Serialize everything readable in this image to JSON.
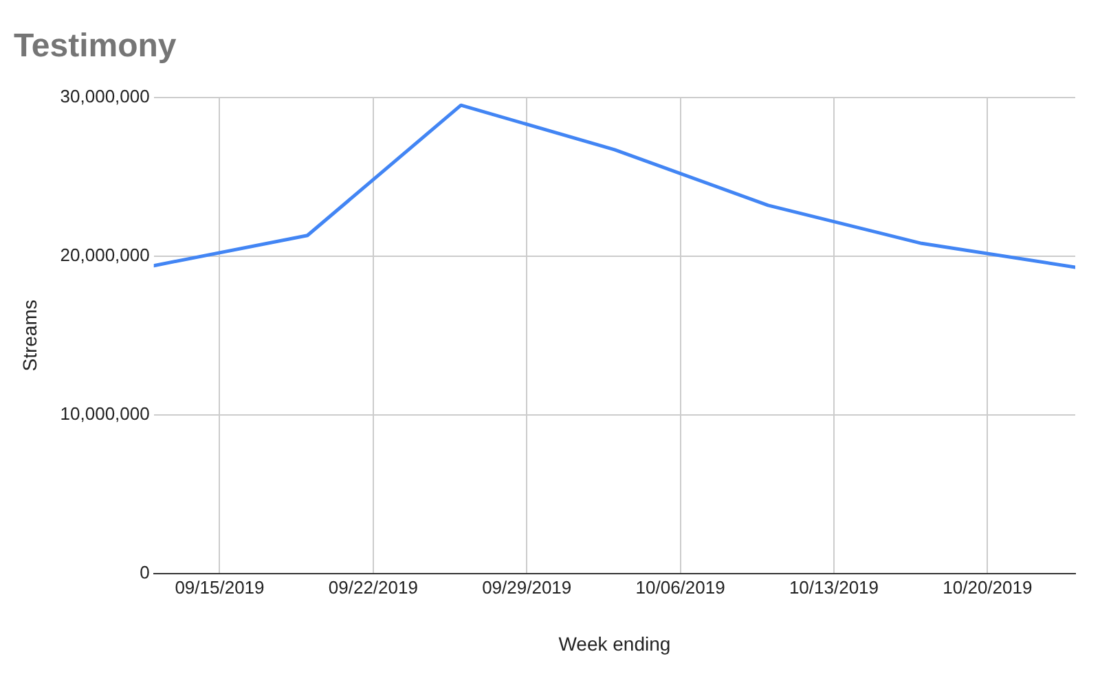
{
  "chart_data": {
    "type": "line",
    "title": "Testimony",
    "xlabel": "Week ending",
    "ylabel": "Streams",
    "x": [
      "2019-09-12",
      "2019-09-19",
      "2019-09-26",
      "2019-10-03",
      "2019-10-10",
      "2019-10-17",
      "2019-10-24"
    ],
    "series": [
      {
        "color": "#4285f4",
        "values": [
          19400000,
          21300000,
          29500000,
          26700000,
          23200000,
          20800000,
          19300000
        ]
      }
    ],
    "xlim": [
      "2019-09-12",
      "2019-10-24"
    ],
    "xticks": [
      {
        "value": "2019-09-15",
        "label": "09/15/2019"
      },
      {
        "value": "2019-09-22",
        "label": "09/22/2019"
      },
      {
        "value": "2019-09-29",
        "label": "09/29/2019"
      },
      {
        "value": "2019-10-06",
        "label": "10/06/2019"
      },
      {
        "value": "2019-10-13",
        "label": "10/13/2019"
      },
      {
        "value": "2019-10-20",
        "label": "10/20/2019"
      }
    ],
    "ylim": [
      0,
      30000000
    ],
    "yticks": [
      0,
      {
        "value": 10000000,
        "label": "10,000,000"
      },
      {
        "value": 20000000,
        "label": "20,000,000"
      },
      {
        "value": 30000000,
        "label": "30,000,000"
      }
    ],
    "grid": true,
    "legend": false,
    "marker": "none",
    "line_style": "solid"
  }
}
